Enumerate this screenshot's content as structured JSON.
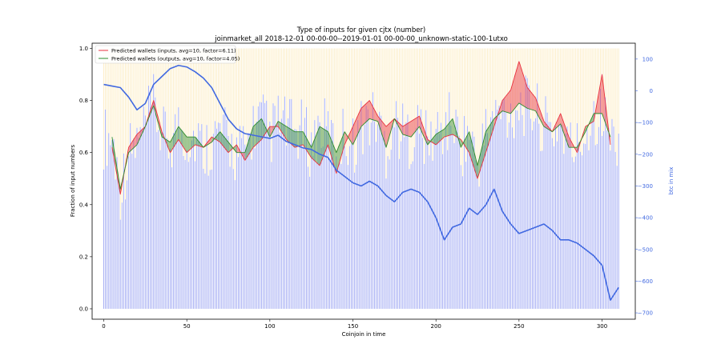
{
  "chart_data": {
    "type": "line",
    "title": "Type of inputs for given cjtx (number)",
    "subtitle": "joinmarket_all 2018-12-01 00-00-00--2019-01-01 00-00-00_unknown-static-100-1utxo",
    "xlabel": "Coinjoin in time",
    "ylabel": "Fraction of input numbers",
    "y2label": "btc in mix",
    "xlim": [
      -7,
      320
    ],
    "ylim": [
      -0.04,
      1.02
    ],
    "y2lim": [
      -720,
      150
    ],
    "x_ticks": [
      0,
      50,
      100,
      150,
      200,
      250,
      300
    ],
    "y_ticks": [
      0.0,
      0.2,
      0.4,
      0.6,
      0.8,
      1.0
    ],
    "y2_ticks": [
      100,
      0,
      -100,
      -200,
      -300,
      -400,
      -500,
      -600,
      -700
    ],
    "legend_position": "top-left",
    "grid": false,
    "colors": {
      "inputs": "#e8313f",
      "outputs": "#2e8b2e",
      "btc": "#4169e1",
      "bars_blue": "#4a5be8",
      "bars_yellow": "#f5c542"
    },
    "series": [
      {
        "name": "Predicted wallets (inputs, avg=10, factor=6.11)",
        "x": [
          5,
          10,
          15,
          20,
          25,
          30,
          35,
          40,
          45,
          50,
          55,
          60,
          65,
          70,
          75,
          80,
          85,
          90,
          95,
          100,
          105,
          110,
          115,
          120,
          125,
          130,
          135,
          140,
          145,
          150,
          155,
          160,
          165,
          170,
          175,
          180,
          185,
          190,
          195,
          200,
          205,
          210,
          215,
          220,
          225,
          230,
          235,
          240,
          245,
          250,
          255,
          260,
          265,
          270,
          275,
          280,
          285,
          290,
          295,
          300,
          305
        ],
        "values": [
          0.62,
          0.44,
          0.62,
          0.67,
          0.7,
          0.8,
          0.68,
          0.6,
          0.65,
          0.6,
          0.63,
          0.62,
          0.66,
          0.64,
          0.6,
          0.63,
          0.57,
          0.62,
          0.65,
          0.7,
          0.7,
          0.65,
          0.62,
          0.63,
          0.58,
          0.55,
          0.63,
          0.52,
          0.63,
          0.7,
          0.77,
          0.8,
          0.74,
          0.7,
          0.73,
          0.7,
          0.72,
          0.74,
          0.65,
          0.63,
          0.66,
          0.67,
          0.65,
          0.6,
          0.5,
          0.6,
          0.7,
          0.8,
          0.84,
          0.95,
          0.85,
          0.81,
          0.72,
          0.68,
          0.75,
          0.66,
          0.6,
          0.7,
          0.72,
          0.9,
          0.63
        ]
      },
      {
        "name": "Predicted wallets (outputs, avg=10, factor=4.05)",
        "x": [
          5,
          10,
          15,
          20,
          25,
          30,
          35,
          40,
          45,
          50,
          55,
          60,
          65,
          70,
          75,
          80,
          85,
          90,
          95,
          100,
          105,
          110,
          115,
          120,
          125,
          130,
          135,
          140,
          145,
          150,
          155,
          160,
          165,
          170,
          175,
          180,
          185,
          190,
          195,
          200,
          205,
          210,
          215,
          220,
          225,
          230,
          235,
          240,
          245,
          250,
          255,
          260,
          265,
          270,
          275,
          280,
          285,
          290,
          295,
          300,
          305
        ],
        "values": [
          0.66,
          0.46,
          0.6,
          0.63,
          0.7,
          0.78,
          0.66,
          0.64,
          0.7,
          0.66,
          0.66,
          0.62,
          0.64,
          0.68,
          0.64,
          0.6,
          0.6,
          0.7,
          0.73,
          0.66,
          0.72,
          0.7,
          0.68,
          0.68,
          0.62,
          0.7,
          0.68,
          0.6,
          0.68,
          0.63,
          0.7,
          0.73,
          0.72,
          0.62,
          0.73,
          0.67,
          0.66,
          0.7,
          0.63,
          0.67,
          0.69,
          0.73,
          0.62,
          0.68,
          0.55,
          0.68,
          0.73,
          0.76,
          0.75,
          0.79,
          0.77,
          0.76,
          0.7,
          0.68,
          0.71,
          0.62,
          0.62,
          0.68,
          0.75,
          0.75,
          0.66
        ]
      },
      {
        "name": "btc in mix",
        "axis": "y2",
        "x": [
          0,
          5,
          10,
          15,
          20,
          25,
          30,
          35,
          40,
          45,
          50,
          55,
          60,
          65,
          70,
          75,
          80,
          85,
          90,
          95,
          100,
          105,
          110,
          115,
          120,
          125,
          130,
          135,
          140,
          145,
          150,
          155,
          160,
          165,
          170,
          175,
          180,
          185,
          190,
          195,
          200,
          205,
          210,
          215,
          220,
          225,
          230,
          235,
          240,
          245,
          250,
          255,
          260,
          265,
          270,
          275,
          280,
          285,
          290,
          295,
          300,
          305,
          310
        ],
        "values": [
          20,
          15,
          10,
          -20,
          -60,
          -40,
          20,
          45,
          70,
          80,
          75,
          60,
          40,
          10,
          -40,
          -90,
          -120,
          -135,
          -140,
          -145,
          -150,
          -140,
          -160,
          -170,
          -180,
          -185,
          -200,
          -210,
          -250,
          -270,
          -290,
          -300,
          -285,
          -300,
          -330,
          -350,
          -320,
          -310,
          -320,
          -350,
          -400,
          -470,
          -430,
          -420,
          -370,
          -390,
          -360,
          -310,
          -380,
          -420,
          -450,
          -440,
          -430,
          -420,
          -440,
          -470,
          -470,
          -480,
          -500,
          -520,
          -550,
          -660,
          -620
        ]
      }
    ]
  }
}
